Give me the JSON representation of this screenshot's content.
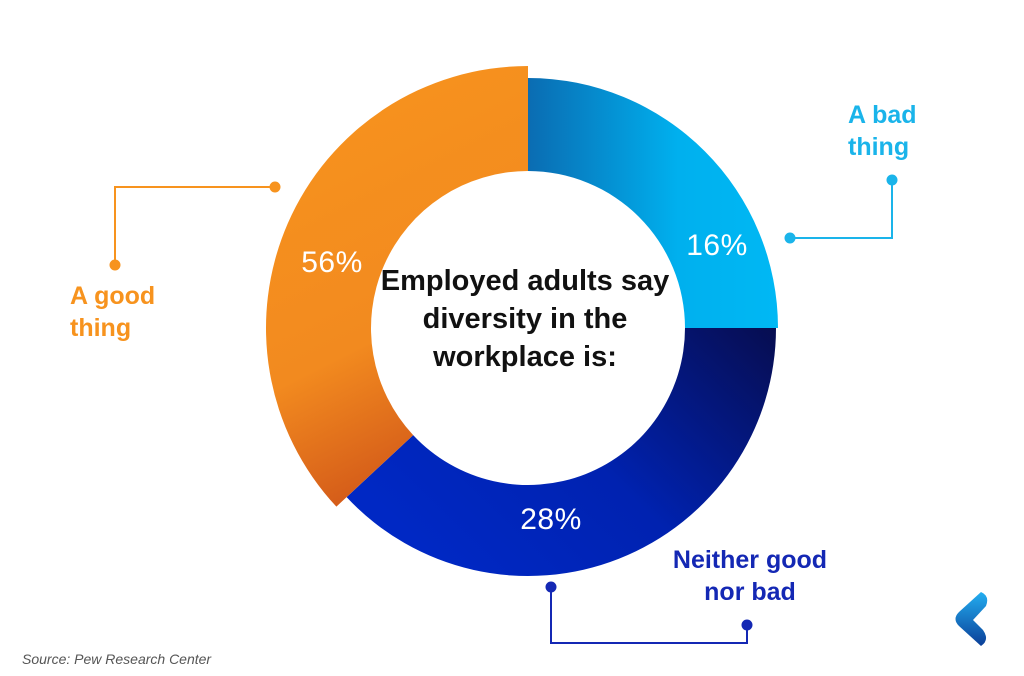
{
  "chart_data": {
    "type": "pie",
    "title": "Employed adults say diversity in the workplace is:",
    "title_parts": {
      "pre": "Employed adults say ",
      "bold": "diversity",
      "post": " in the workplace is:"
    },
    "slices": [
      {
        "label": "A bad thing",
        "value": 16,
        "value_label": "16%",
        "color": "#00b4f0"
      },
      {
        "label": "Neither good nor bad",
        "value": 28,
        "value_label": "28%",
        "color": "#0026c0"
      },
      {
        "label": "A good thing",
        "value": 56,
        "value_label": "56%",
        "color": "#f7931e"
      }
    ],
    "donut": true,
    "legend": "callouts"
  },
  "source": "Source: Pew Research Center",
  "label_colors": {
    "bad": "#1ab4ea",
    "neither": "#1428b4",
    "good": "#f7931e"
  },
  "logo": "brand-logo-icon"
}
